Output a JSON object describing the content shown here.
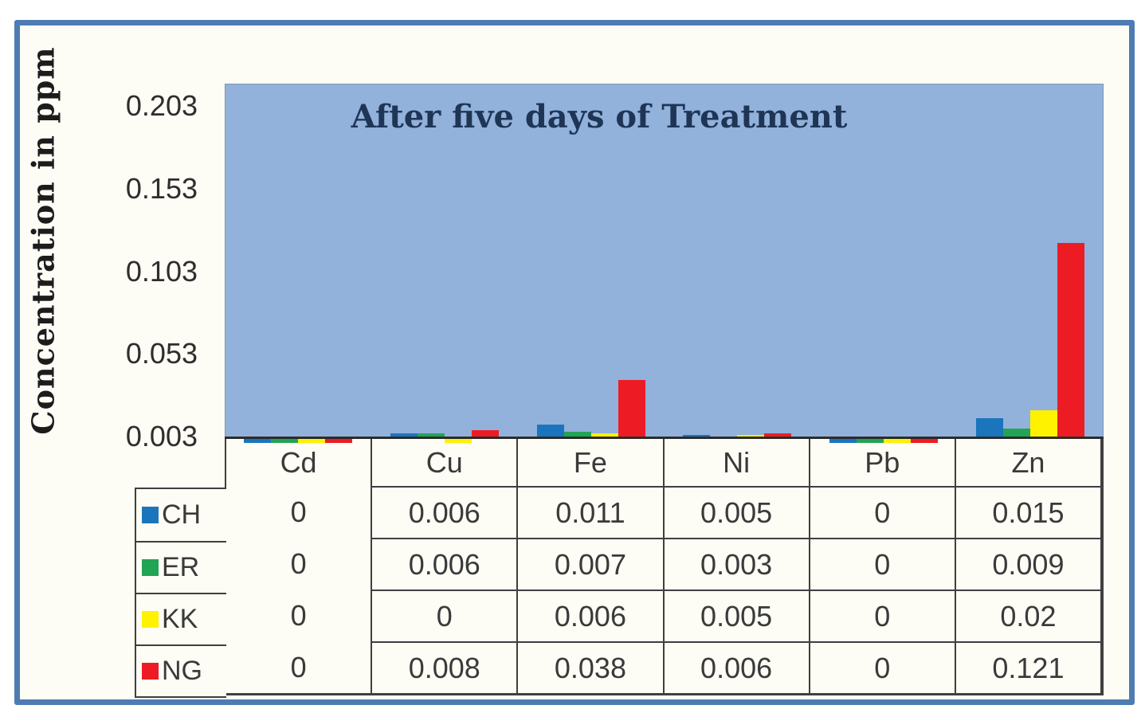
{
  "frame": {
    "border_color": "#4E7CB2",
    "inner_background": "#FDFCF5"
  },
  "chart_data": {
    "type": "bar",
    "title": "After five days of Treatment",
    "title_color": "#1E3556",
    "ylabel": "Concentration in ppm",
    "xlabel": "",
    "categories": [
      "Cd",
      "Cu",
      "Fe",
      "Ni",
      "Pb",
      "Zn"
    ],
    "series": [
      {
        "name": "CH",
        "color": "#1B75BC",
        "values": [
          0,
          0.006,
          0.011,
          0.005,
          0,
          0.015
        ]
      },
      {
        "name": "ER",
        "color": "#22A455",
        "values": [
          0,
          0.006,
          0.007,
          0.003,
          0,
          0.009
        ]
      },
      {
        "name": "KK",
        "color": "#FFF200",
        "values": [
          0,
          0,
          0.006,
          0.005,
          0,
          0.02
        ]
      },
      {
        "name": "NG",
        "color": "#ED1C24",
        "values": [
          0,
          0.008,
          0.038,
          0.006,
          0,
          0.121
        ]
      }
    ],
    "y_ticks": [
      0.003,
      0.053,
      0.103,
      0.153,
      0.203
    ],
    "y_tick_labels": [
      "0.003",
      "0.053",
      "0.103",
      "0.153",
      "0.203"
    ],
    "ylim": [
      0.003,
      0.2185
    ],
    "plot_background": "#92B1DB",
    "grid": false,
    "legend_position": "data-table-left",
    "data_table_shown": true,
    "table_border_color": "#3F3F3F",
    "text_color": "#3A3A3A"
  }
}
